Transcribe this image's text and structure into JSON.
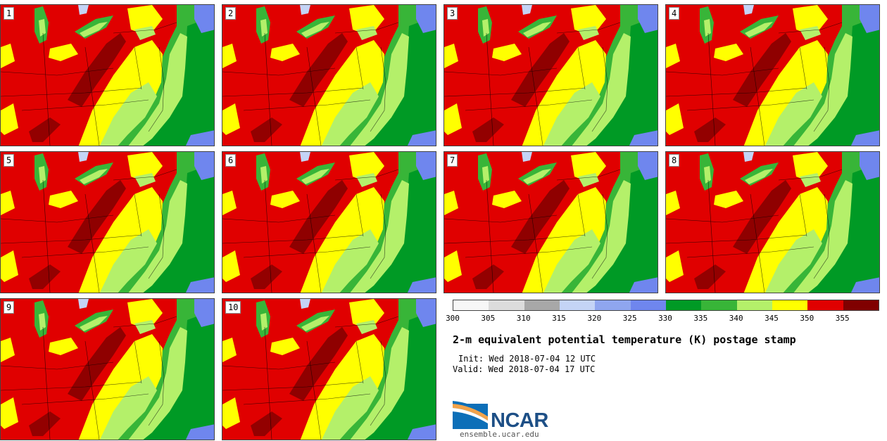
{
  "panels": [
    {
      "label": "1"
    },
    {
      "label": "2"
    },
    {
      "label": "3"
    },
    {
      "label": "4"
    },
    {
      "label": "5"
    },
    {
      "label": "6"
    },
    {
      "label": "7"
    },
    {
      "label": "8"
    },
    {
      "label": "9"
    },
    {
      "label": "10"
    }
  ],
  "colorbar": {
    "colors": [
      "#f7f7f7",
      "#dcdcdc",
      "#a8a8a8",
      "#c4d4f6",
      "#8fa6ef",
      "#6f86ee",
      "#009a25",
      "#38b538",
      "#b4f06a",
      "#ffff00",
      "#e00000",
      "#800000"
    ],
    "ticks": [
      "300",
      "305",
      "310",
      "315",
      "320",
      "325",
      "330",
      "335",
      "340",
      "345",
      "350",
      "355"
    ]
  },
  "chart_data": {
    "type": "heatmap",
    "title": "2-m equivalent potential temperature (K) postage stamp",
    "variable": "2-m equivalent potential temperature",
    "units": "K",
    "levels": [
      300,
      305,
      310,
      315,
      320,
      325,
      330,
      335,
      340,
      345,
      350,
      355
    ],
    "members": 10
  },
  "text": {
    "title": "2-m equivalent potential temperature (K) postage stamp",
    "init": "Init: Wed 2018-07-04 12 UTC",
    "valid": "Valid: Wed 2018-07-04 17 UTC",
    "logo": "NCAR",
    "site": "ensemble.ucar.edu"
  }
}
